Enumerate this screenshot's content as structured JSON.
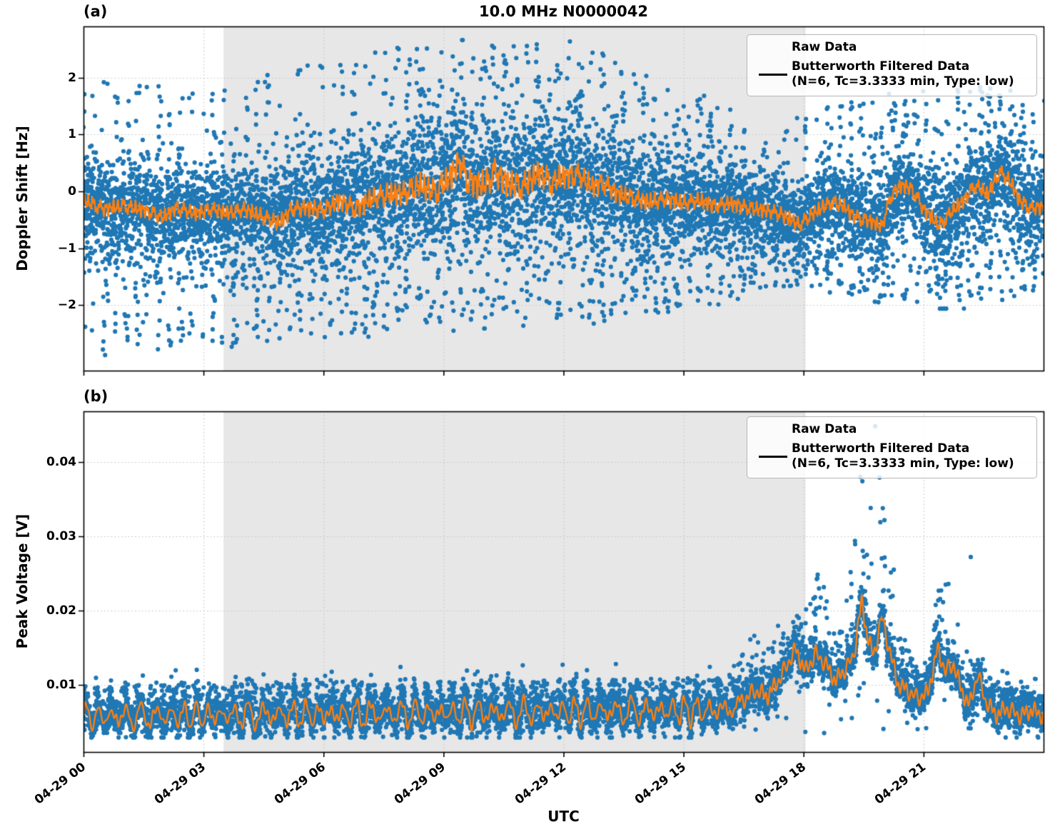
{
  "figure_title": "10.0 MHz N0000042",
  "colors": {
    "raw": "#1f77b4",
    "filtered": "#ff7f0e",
    "shade": "#e7e7e7",
    "grid": "#c9c9c9",
    "spine": "#000000",
    "background": "#ffffff"
  },
  "legend": {
    "raw_label": "Raw Data",
    "filtered_label_line1": "Butterworth Filtered Data",
    "filtered_label_line2": "(N=6, Tc=3.3333 min, Type: low)"
  },
  "xlabel": "UTC",
  "chart_data": [
    {
      "panel": "a",
      "panel_label": "(a)",
      "type": "scatter+line",
      "title": "10.0 MHz N0000042",
      "ylabel": "Doppler Shift [Hz]",
      "ylim": [
        -3.15,
        2.9
      ],
      "yticks": [
        2,
        1,
        0,
        -1,
        -2
      ],
      "ytick_labels": [
        "2",
        "1",
        "0",
        "−1",
        "−2"
      ],
      "xlim_hours": [
        0,
        24
      ],
      "xtick_hours": [
        0,
        3,
        6,
        9,
        12,
        15,
        18,
        21
      ],
      "xtick_labels": [
        "04-29 00",
        "04-29 03",
        "04-29 06",
        "04-29 09",
        "04-29 12",
        "04-29 15",
        "04-29 18",
        "04-29 21"
      ],
      "grid": true,
      "legend_position": "upper right",
      "shaded_region_hours": [
        3.5,
        18.05
      ],
      "series": [
        {
          "name": "Raw Data",
          "type": "scatter",
          "color": "#1f77b4",
          "envelope": {
            "hours": [
              0,
              1,
              2,
              3,
              4,
              5,
              6,
              7,
              8,
              9,
              10,
              11,
              12,
              13,
              14,
              15,
              16,
              17,
              18,
              19,
              20,
              21,
              22,
              23,
              24
            ],
            "core_halfwidth_hz": [
              0.78,
              0.75,
              0.72,
              0.7,
              0.72,
              0.78,
              0.88,
              0.95,
              1.0,
              1.05,
              1.05,
              1.05,
              1.0,
              0.95,
              0.85,
              0.75,
              0.65,
              0.57,
              0.55,
              0.68,
              0.72,
              0.78,
              0.82,
              0.78,
              0.7
            ],
            "outlier_top_hz": [
              1.95,
              1.9,
              1.9,
              1.95,
              2.05,
              2.2,
              2.3,
              2.45,
              2.55,
              2.6,
              2.6,
              2.6,
              2.6,
              2.45,
              2.2,
              1.75,
              1.5,
              1.32,
              1.3,
              1.6,
              1.65,
              1.7,
              1.85,
              1.95,
              1.6
            ],
            "outlier_bottom_hz": [
              -2.9,
              -2.85,
              -2.85,
              -2.6,
              -2.7,
              -2.6,
              -2.5,
              -2.5,
              -2.45,
              -2.4,
              -2.35,
              -2.3,
              -2.3,
              -2.25,
              -2.15,
              -2.1,
              -1.9,
              -1.7,
              -1.55,
              -1.8,
              -1.9,
              -2.0,
              -2.0,
              -1.95,
              -1.8
            ],
            "burst_column_period_h": 0.27
          }
        },
        {
          "name": "Butterworth Filtered Data (N=6, Tc=3.3333 min, Type: low)",
          "type": "line",
          "color": "#ff7f0e",
          "control_points": [
            [
              0,
              -0.15
            ],
            [
              0.5,
              -0.3
            ],
            [
              1,
              -0.25
            ],
            [
              1.5,
              -0.32
            ],
            [
              2,
              -0.45
            ],
            [
              2.3,
              -0.28
            ],
            [
              2.8,
              -0.38
            ],
            [
              3.2,
              -0.3
            ],
            [
              3.6,
              -0.38
            ],
            [
              4,
              -0.3
            ],
            [
              4.4,
              -0.42
            ],
            [
              4.9,
              -0.55
            ],
            [
              5.2,
              -0.3
            ],
            [
              5.6,
              -0.28
            ],
            [
              6,
              -0.32
            ],
            [
              6.4,
              -0.15
            ],
            [
              6.8,
              -0.3
            ],
            [
              7.2,
              -0.12
            ],
            [
              7.6,
              -0.05
            ],
            [
              8,
              -0.02
            ],
            [
              8.4,
              0.12
            ],
            [
              8.8,
              0.0
            ],
            [
              9.2,
              0.3
            ],
            [
              9.4,
              0.55
            ],
            [
              9.6,
              0.2
            ],
            [
              10,
              0.12
            ],
            [
              10.3,
              0.35
            ],
            [
              10.6,
              0.15
            ],
            [
              11,
              0.1
            ],
            [
              11.4,
              0.35
            ],
            [
              11.7,
              0.15
            ],
            [
              12,
              0.28
            ],
            [
              12.4,
              0.3
            ],
            [
              12.7,
              0.1
            ],
            [
              13,
              0.15
            ],
            [
              13.4,
              -0.05
            ],
            [
              13.8,
              -0.12
            ],
            [
              14.2,
              -0.18
            ],
            [
              14.6,
              -0.12
            ],
            [
              15,
              -0.2
            ],
            [
              15.4,
              -0.15
            ],
            [
              15.8,
              -0.25
            ],
            [
              16.2,
              -0.2
            ],
            [
              16.6,
              -0.28
            ],
            [
              17,
              -0.32
            ],
            [
              17.4,
              -0.38
            ],
            [
              17.9,
              -0.58
            ],
            [
              18.3,
              -0.35
            ],
            [
              18.7,
              -0.18
            ],
            [
              19,
              -0.25
            ],
            [
              19.3,
              -0.45
            ],
            [
              19.7,
              -0.52
            ],
            [
              19.95,
              -0.62
            ],
            [
              20.2,
              -0.05
            ],
            [
              20.45,
              0.12
            ],
            [
              20.7,
              0.05
            ],
            [
              21,
              -0.3
            ],
            [
              21.4,
              -0.6
            ],
            [
              21.7,
              -0.35
            ],
            [
              22,
              -0.15
            ],
            [
              22.3,
              0.12
            ],
            [
              22.6,
              -0.05
            ],
            [
              22.9,
              0.35
            ],
            [
              23.15,
              0.2
            ],
            [
              23.4,
              -0.15
            ],
            [
              23.7,
              -0.3
            ],
            [
              24,
              -0.25
            ]
          ]
        }
      ]
    },
    {
      "panel": "b",
      "panel_label": "(b)",
      "type": "scatter+line",
      "ylabel": "Peak Voltage [V]",
      "xlabel": "UTC",
      "ylim": [
        0.00095,
        0.0468
      ],
      "yticks": [
        0.04,
        0.03,
        0.02,
        0.01
      ],
      "ytick_labels": [
        "0.04",
        "0.03",
        "0.02",
        "0.01"
      ],
      "xlim_hours": [
        0,
        24
      ],
      "xtick_hours": [
        0,
        3,
        6,
        9,
        12,
        15,
        18,
        21
      ],
      "xtick_labels": [
        "04-29 00",
        "04-29 03",
        "04-29 06",
        "04-29 09",
        "04-29 12",
        "04-29 15",
        "04-29 18",
        "04-29 21"
      ],
      "grid": true,
      "legend_position": "upper right",
      "shaded_region_hours": [
        3.5,
        18.05
      ],
      "series": [
        {
          "name": "Raw Data",
          "type": "scatter",
          "color": "#1f77b4",
          "envelope": {
            "baseline_mean_v": 0.0057,
            "baseline_mean_slope_v_per_16h": 0.0009,
            "baseline_osc_amplitude_v": 0.00175,
            "baseline_osc_period_h": 0.34,
            "baseline_band_bottom_v": 0.0031,
            "top_envelope": [
              [
                0,
                0.0098
              ],
              [
                16,
                0.011
              ],
              [
                16.5,
                0.0145
              ],
              [
                16.8,
                0.018
              ],
              [
                17.1,
                0.016
              ],
              [
                17.35,
                0.019
              ],
              [
                17.6,
                0.0155
              ],
              [
                18,
                0.02
              ],
              [
                18.3,
                0.026
              ],
              [
                18.55,
                0.024
              ],
              [
                18.8,
                0.016
              ],
              [
                19,
                0.018
              ],
              [
                19.2,
                0.027
              ],
              [
                19.4,
                0.036
              ],
              [
                19.55,
                0.031
              ],
              [
                19.8,
                0.038
              ],
              [
                20,
                0.036
              ],
              [
                20.2,
                0.028
              ],
              [
                20.4,
                0.02
              ],
              [
                20.6,
                0.015
              ],
              [
                20.8,
                0.0125
              ],
              [
                21,
                0.011
              ],
              [
                21.2,
                0.014
              ],
              [
                21.4,
                0.0255
              ],
              [
                21.6,
                0.03
              ],
              [
                21.8,
                0.024
              ],
              [
                22,
                0.017
              ],
              [
                22.2,
                0.013
              ],
              [
                22.4,
                0.0155
              ],
              [
                22.6,
                0.0105
              ],
              [
                23,
                0.0098
              ],
              [
                23.5,
                0.0092
              ],
              [
                24,
                0.0085
              ]
            ],
            "extra_points": [
              [
                19.79,
                0.0448
              ],
              [
                19.42,
                0.038
              ],
              [
                19.47,
                0.0374
              ],
              [
                19.9,
                0.0379
              ],
              [
                22.18,
                0.0272
              ]
            ]
          }
        },
        {
          "name": "Butterworth Filtered Data (N=6, Tc=3.3333 min, Type: low)",
          "type": "line",
          "color": "#ff7f0e",
          "control_points": [
            [
              16,
              0.0068
            ],
            [
              16.4,
              0.0078
            ],
            [
              16.8,
              0.0092
            ],
            [
              17.1,
              0.0085
            ],
            [
              17.4,
              0.0108
            ],
            [
              17.8,
              0.0148
            ],
            [
              18.05,
              0.0118
            ],
            [
              18.3,
              0.0142
            ],
            [
              18.55,
              0.0128
            ],
            [
              18.8,
              0.0105
            ],
            [
              19.05,
              0.0122
            ],
            [
              19.25,
              0.0138
            ],
            [
              19.45,
              0.0212
            ],
            [
              19.6,
              0.0165
            ],
            [
              19.75,
              0.0138
            ],
            [
              19.95,
              0.0192
            ],
            [
              20.1,
              0.0158
            ],
            [
              20.35,
              0.0102
            ],
            [
              20.6,
              0.0092
            ],
            [
              20.85,
              0.0082
            ],
            [
              21.1,
              0.0088
            ],
            [
              21.35,
              0.0148
            ],
            [
              21.55,
              0.0118
            ],
            [
              21.75,
              0.0128
            ],
            [
              21.95,
              0.0092
            ],
            [
              22.15,
              0.0072
            ],
            [
              22.35,
              0.0115
            ],
            [
              22.55,
              0.0078
            ],
            [
              22.8,
              0.006
            ],
            [
              23.1,
              0.0068
            ],
            [
              23.4,
              0.0058
            ],
            [
              23.7,
              0.0066
            ],
            [
              24,
              0.0058
            ]
          ]
        }
      ]
    }
  ]
}
